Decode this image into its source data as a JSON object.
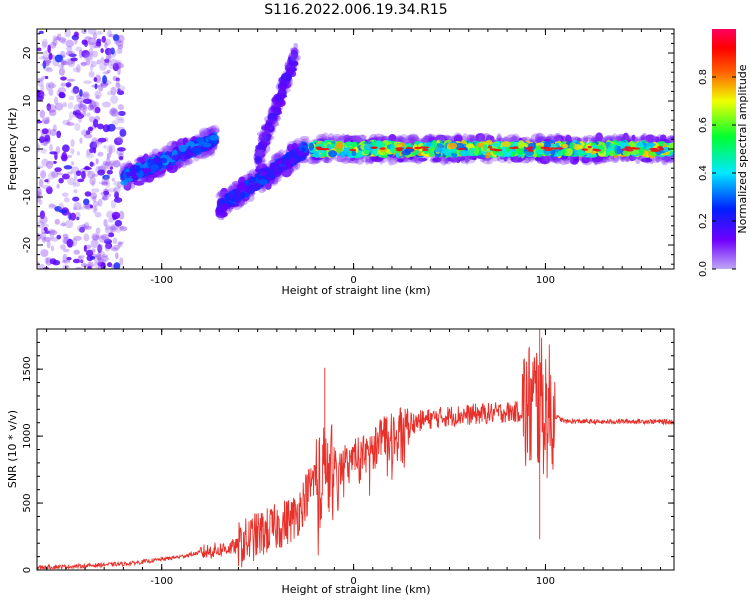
{
  "title": "S116.2022.006.19.34.R15",
  "chart_data": [
    {
      "type": "heatmap",
      "xlabel": "Height of straight line (km)",
      "ylabel": "Frequency (Hz)",
      "xlim": [
        -165,
        167
      ],
      "ylim": [
        -25,
        25
      ],
      "xticks": [
        -100,
        0,
        100
      ],
      "yticks": [
        -20,
        -10,
        0,
        10,
        20
      ],
      "grid": false,
      "colorbar": {
        "label": "Normalized spectral amplitude",
        "range": [
          0,
          1
        ],
        "ticks": [
          0.0,
          0.2,
          0.4,
          0.6,
          0.8
        ],
        "tick_labels": [
          "0.0",
          "0.2",
          "0.4",
          "0.6",
          "0.8"
        ],
        "colormap": [
          "#b090f0",
          "#6a00ff",
          "#0030ff",
          "#00e8ff",
          "#00ff40",
          "#f0ff00",
          "#ff6000",
          "#ff0000",
          "#ff0060"
        ]
      },
      "features": [
        {
          "x_range": [
            -165,
            -120
          ],
          "freq_range": [
            -25,
            25
          ],
          "amplitude": 0.15
        },
        {
          "x_range": [
            -120,
            -72
          ],
          "freq_start": -6,
          "freq_end": 2,
          "amplitude": 0.35
        },
        {
          "x_range": [
            -70,
            -25
          ],
          "freq_start": -12,
          "freq_end": 0,
          "amplitude": 0.3
        },
        {
          "x_range": [
            -50,
            -30
          ],
          "freq_start": -2,
          "freq_end": 20,
          "amplitude": 0.2
        },
        {
          "x_range": [
            -22,
            167
          ],
          "freq_start": 0,
          "freq_end": 0,
          "amplitude": 0.75
        }
      ]
    },
    {
      "type": "line",
      "xlabel": "Height of straight line (km)",
      "ylabel": "SNR (10 * v/v)",
      "xlim": [
        -165,
        167
      ],
      "ylim": [
        0,
        1800
      ],
      "xticks": [
        -100,
        0,
        100
      ],
      "yticks": [
        0,
        500,
        1000,
        1500
      ],
      "grid": false,
      "series": [
        {
          "color": "#e8302a",
          "x": [
            -165,
            -150,
            -140,
            -130,
            -120,
            -110,
            -100,
            -90,
            -80,
            -70,
            -60,
            -50,
            -40,
            -30,
            -25,
            -20,
            -15,
            -10,
            -5,
            0,
            10,
            20,
            30,
            40,
            50,
            60,
            70,
            80,
            85,
            90,
            95,
            100,
            105,
            110,
            120,
            130,
            140,
            150,
            160,
            167
          ],
          "y": [
            20,
            25,
            30,
            40,
            45,
            60,
            80,
            100,
            130,
            150,
            180,
            260,
            320,
            400,
            550,
            700,
            720,
            750,
            790,
            850,
            950,
            1050,
            1100,
            1130,
            1150,
            1160,
            1170,
            1180,
            1180,
            1190,
            1250,
            1200,
            1150,
            1110,
            1110,
            1105,
            1110,
            1110,
            1108,
            1105
          ]
        }
      ],
      "annotations": [
        {
          "x": -15,
          "y": 1510
        },
        {
          "x": 97,
          "y": 1800
        },
        {
          "x": 97,
          "y": 230
        }
      ]
    }
  ]
}
